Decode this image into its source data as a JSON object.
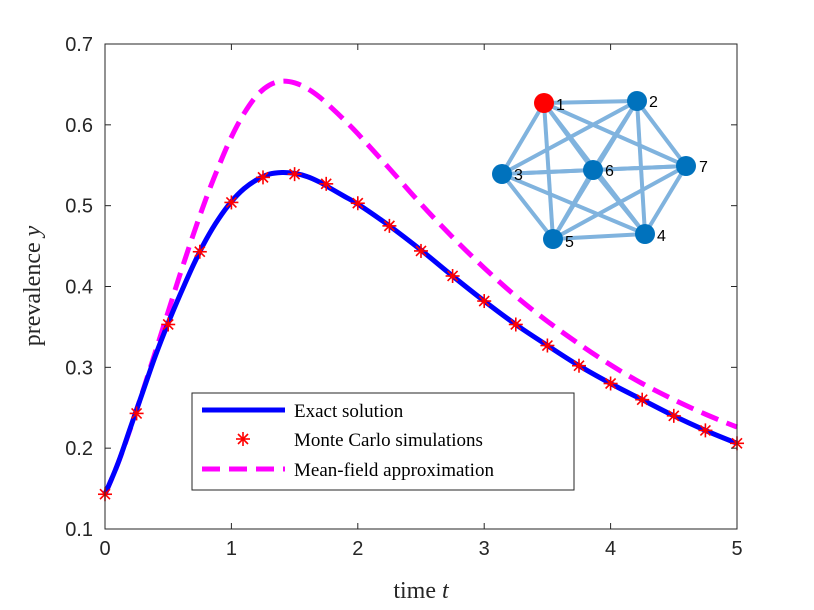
{
  "chart_data": {
    "type": "line",
    "xlabel_prefix": "time ",
    "xlabel_var": "t",
    "ylabel_prefix": "prevalence ",
    "ylabel_var": "y",
    "xlim": [
      0,
      5
    ],
    "ylim": [
      0.1,
      0.7
    ],
    "xticks": [
      0,
      1,
      2,
      3,
      4,
      5
    ],
    "yticks": [
      0.1,
      0.2,
      0.3,
      0.4,
      0.5,
      0.6,
      0.7
    ],
    "xtick_labels": [
      "0",
      "1",
      "2",
      "3",
      "4",
      "5"
    ],
    "ytick_labels": [
      "0.1",
      "0.2",
      "0.3",
      "0.4",
      "0.5",
      "0.6",
      "0.7"
    ],
    "legend_position": "bottom-center",
    "series": [
      {
        "name": "Exact solution",
        "style": "solid",
        "color": "#0000FF",
        "x": [
          0,
          0.1,
          0.2,
          0.3,
          0.4,
          0.5,
          0.6,
          0.7,
          0.8,
          0.9,
          1.0,
          1.1,
          1.2,
          1.3,
          1.4,
          1.5,
          1.6,
          1.7,
          1.8,
          1.9,
          2.0,
          2.25,
          2.5,
          2.75,
          3.0,
          3.25,
          3.5,
          3.75,
          4.0,
          4.25,
          4.5,
          4.75,
          5.0
        ],
        "y": [
          0.143,
          0.18,
          0.225,
          0.27,
          0.315,
          0.355,
          0.392,
          0.427,
          0.458,
          0.484,
          0.505,
          0.521,
          0.532,
          0.539,
          0.541,
          0.54,
          0.536,
          0.529,
          0.52,
          0.511,
          0.502,
          0.475,
          0.445,
          0.413,
          0.382,
          0.353,
          0.327,
          0.302,
          0.28,
          0.26,
          0.24,
          0.222,
          0.206
        ]
      },
      {
        "name": "Monte Carlo simulations",
        "style": "marker",
        "color": "#FF0000",
        "x": [
          0,
          0.25,
          0.5,
          0.75,
          1.0,
          1.25,
          1.5,
          1.75,
          2.0,
          2.25,
          2.5,
          2.75,
          3.0,
          3.25,
          3.5,
          3.75,
          4.0,
          4.25,
          4.5,
          4.75,
          5.0
        ],
        "y": [
          0.143,
          0.243,
          0.353,
          0.443,
          0.504,
          0.535,
          0.539,
          0.527,
          0.503,
          0.475,
          0.444,
          0.413,
          0.382,
          0.353,
          0.327,
          0.302,
          0.28,
          0.26,
          0.24,
          0.222,
          0.206
        ]
      },
      {
        "name": "Mean-field approximation",
        "style": "dashed",
        "color": "#FF00FF",
        "x": [
          0,
          0.1,
          0.2,
          0.3,
          0.4,
          0.5,
          0.6,
          0.7,
          0.8,
          0.9,
          1.0,
          1.1,
          1.2,
          1.3,
          1.4,
          1.5,
          1.6,
          1.7,
          1.8,
          1.9,
          2.0,
          2.25,
          2.5,
          2.75,
          3.0,
          3.25,
          3.5,
          3.75,
          4.0,
          4.25,
          4.5,
          4.75,
          5.0
        ],
        "y": [
          0.143,
          0.18,
          0.224,
          0.271,
          0.32,
          0.369,
          0.418,
          0.465,
          0.509,
          0.549,
          0.585,
          0.614,
          0.636,
          0.649,
          0.654,
          0.652,
          0.645,
          0.634,
          0.62,
          0.605,
          0.589,
          0.546,
          0.502,
          0.461,
          0.423,
          0.388,
          0.357,
          0.329,
          0.303,
          0.28,
          0.26,
          0.242,
          0.226
        ]
      }
    ],
    "inset_network": {
      "nodes": [
        {
          "id": "1",
          "label": "1",
          "color": "#FF0000"
        },
        {
          "id": "2",
          "label": "2",
          "color": "#0072BD"
        },
        {
          "id": "3",
          "label": "3",
          "color": "#0072BD"
        },
        {
          "id": "4",
          "label": "4",
          "color": "#0072BD"
        },
        {
          "id": "5",
          "label": "5",
          "color": "#0072BD"
        },
        {
          "id": "6",
          "label": "6",
          "color": "#0072BD"
        },
        {
          "id": "7",
          "label": "7",
          "color": "#0072BD"
        }
      ],
      "edge_color": "#80B3DE",
      "complete_graph": true
    }
  }
}
